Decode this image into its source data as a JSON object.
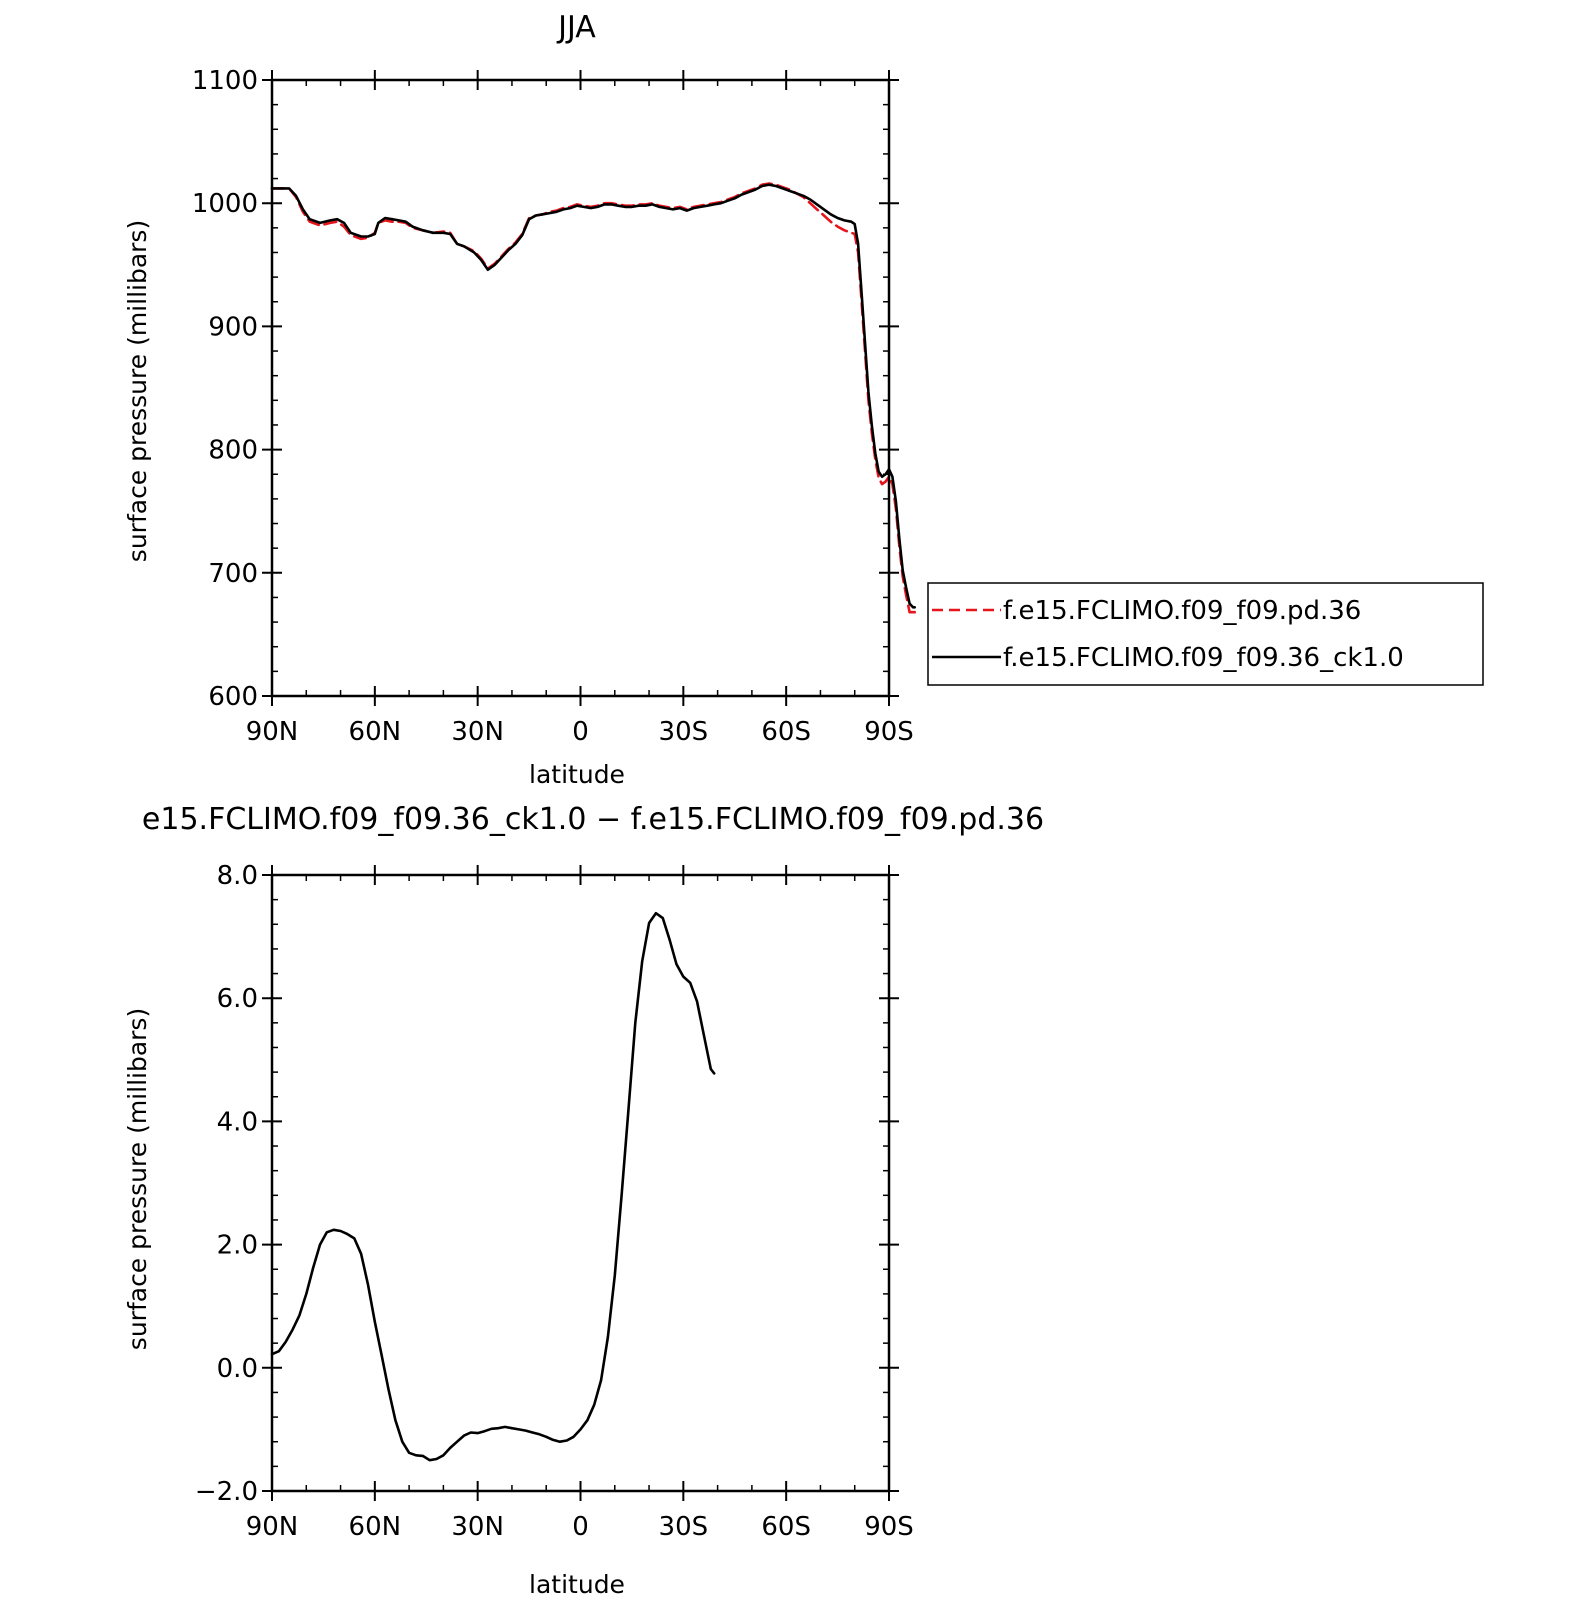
{
  "chart_data": [
    {
      "type": "line",
      "title": "JJA",
      "xlabel": "latitude",
      "ylabel": "surface pressure (millibars)",
      "xlim": [
        -90,
        90
      ],
      "ylim": [
        600,
        1100
      ],
      "x_ticks": [
        -90,
        -60,
        -30,
        0,
        30,
        60,
        90
      ],
      "x_tick_labels": [
        "90N",
        "60N",
        "30N",
        "0",
        "30S",
        "60S",
        "90S"
      ],
      "y_ticks": [
        600,
        700,
        800,
        900,
        1000,
        1100
      ],
      "y_tick_labels": [
        "600",
        "700",
        "800",
        "900",
        "1000",
        "1100"
      ],
      "grid": false,
      "legend_position": "right",
      "series": [
        {
          "name": "f.e15.FCLIMO.f09_f09.pd.36",
          "color": "#e8141c",
          "dash": "dashed",
          "points": [
            [
              -90,
              1012
            ],
            [
              -85,
              1012
            ],
            [
              -83,
              1005
            ],
            [
              -81,
              993
            ],
            [
              -79,
              985
            ],
            [
              -76,
              982
            ],
            [
              -73,
              984
            ],
            [
              -71,
              985
            ],
            [
              -69,
              981
            ],
            [
              -67,
              974
            ],
            [
              -64,
              971
            ],
            [
              -62,
              972
            ],
            [
              -60,
              976
            ],
            [
              -59,
              984
            ],
            [
              -57,
              986
            ],
            [
              -55,
              985
            ],
            [
              -53,
              985
            ],
            [
              -51,
              984
            ],
            [
              -49,
              980
            ],
            [
              -46,
              978
            ],
            [
              -43,
              976
            ],
            [
              -40,
              977
            ],
            [
              -38,
              976
            ],
            [
              -36,
              967
            ],
            [
              -34,
              965
            ],
            [
              -31,
              961
            ],
            [
              -29,
              955
            ],
            [
              -27,
              947
            ],
            [
              -25,
              951
            ],
            [
              -23,
              957
            ],
            [
              -21,
              963
            ],
            [
              -19,
              968
            ],
            [
              -17,
              975
            ],
            [
              -15,
              988
            ],
            [
              -13,
              990
            ],
            [
              -11,
              991
            ],
            [
              -9,
              993
            ],
            [
              -7,
              994
            ],
            [
              -5,
              996
            ],
            [
              -3,
              997
            ],
            [
              -1,
              999
            ],
            [
              1,
              998
            ],
            [
              3,
              997
            ],
            [
              5,
              998
            ],
            [
              7,
              1000
            ],
            [
              9,
              1000
            ],
            [
              11,
              999
            ],
            [
              13,
              998
            ],
            [
              15,
              998
            ],
            [
              17,
              999
            ],
            [
              19,
              999
            ],
            [
              21,
              1000
            ],
            [
              23,
              998
            ],
            [
              25,
              997
            ],
            [
              27,
              996
            ],
            [
              29,
              997
            ],
            [
              31,
              995
            ],
            [
              33,
              997
            ],
            [
              35,
              998
            ],
            [
              37,
              999
            ],
            [
              39,
              1000
            ],
            [
              41,
              1001
            ],
            [
              43,
              1003
            ],
            [
              45,
              1005
            ],
            [
              47,
              1008
            ],
            [
              49,
              1010
            ],
            [
              51,
              1012
            ],
            [
              53,
              1015
            ],
            [
              55,
              1016
            ],
            [
              57,
              1015
            ],
            [
              59,
              1013
            ],
            [
              61,
              1011
            ],
            [
              63,
              1008
            ],
            [
              65,
              1005
            ],
            [
              67,
              1000
            ],
            [
              69,
              995
            ],
            [
              71,
              990
            ],
            [
              73,
              985
            ],
            [
              75,
              981
            ],
            [
              77,
              978
            ],
            [
              79,
              976
            ],
            [
              80,
              975
            ],
            [
              81,
              960
            ],
            [
              82,
              920
            ],
            [
              83,
              880
            ],
            [
              84,
              840
            ],
            [
              85,
              813
            ],
            [
              86,
              792
            ],
            [
              87,
              777
            ],
            [
              88,
              772
            ],
            [
              89,
              774
            ],
            [
              90,
              778
            ],
            [
              91,
              772
            ],
            [
              92,
              752
            ],
            [
              93,
              722
            ],
            [
              94,
              697
            ],
            [
              95,
              682
            ],
            [
              96,
              668
            ],
            [
              97,
              668
            ],
            [
              97.5,
              668
            ]
          ]
        },
        {
          "name": "f.e15.FCLIMO.f09_f09.36_ck1.0",
          "color": "#000000",
          "dash": "solid",
          "points": [
            [
              -90,
              1012
            ],
            [
              -85,
              1012
            ],
            [
              -83,
              1006
            ],
            [
              -81,
              995
            ],
            [
              -79,
              987
            ],
            [
              -76,
              984
            ],
            [
              -73,
              986
            ],
            [
              -71,
              987
            ],
            [
              -69,
              984
            ],
            [
              -67,
              976
            ],
            [
              -64,
              973
            ],
            [
              -62,
              973
            ],
            [
              -60,
              975
            ],
            [
              -59,
              984
            ],
            [
              -57,
              988
            ],
            [
              -55,
              987
            ],
            [
              -53,
              986
            ],
            [
              -51,
              985
            ],
            [
              -49,
              981
            ],
            [
              -46,
              978
            ],
            [
              -43,
              976
            ],
            [
              -40,
              976
            ],
            [
              -38,
              975
            ],
            [
              -36,
              967
            ],
            [
              -34,
              965
            ],
            [
              -31,
              960
            ],
            [
              -29,
              954
            ],
            [
              -27,
              946
            ],
            [
              -25,
              950
            ],
            [
              -23,
              956
            ],
            [
              -21,
              962
            ],
            [
              -19,
              967
            ],
            [
              -17,
              974
            ],
            [
              -15,
              987
            ],
            [
              -13,
              990
            ],
            [
              -11,
              991
            ],
            [
              -9,
              992
            ],
            [
              -7,
              993
            ],
            [
              -5,
              995
            ],
            [
              -3,
              996
            ],
            [
              -1,
              998
            ],
            [
              1,
              997
            ],
            [
              3,
              996
            ],
            [
              5,
              997
            ],
            [
              7,
              999
            ],
            [
              9,
              999
            ],
            [
              11,
              998
            ],
            [
              13,
              997
            ],
            [
              15,
              997
            ],
            [
              17,
              998
            ],
            [
              19,
              998
            ],
            [
              21,
              999
            ],
            [
              23,
              997
            ],
            [
              25,
              996
            ],
            [
              27,
              995
            ],
            [
              29,
              996
            ],
            [
              31,
              994
            ],
            [
              33,
              996
            ],
            [
              35,
              997
            ],
            [
              37,
              998
            ],
            [
              39,
              999
            ],
            [
              41,
              1000
            ],
            [
              43,
              1002
            ],
            [
              45,
              1004
            ],
            [
              47,
              1007
            ],
            [
              49,
              1009
            ],
            [
              51,
              1011
            ],
            [
              53,
              1014
            ],
            [
              55,
              1015
            ],
            [
              57,
              1014
            ],
            [
              59,
              1012
            ],
            [
              61,
              1010
            ],
            [
              63,
              1008
            ],
            [
              65,
              1006
            ],
            [
              67,
              1003
            ],
            [
              69,
              999
            ],
            [
              71,
              995
            ],
            [
              73,
              991
            ],
            [
              75,
              988
            ],
            [
              77,
              986
            ],
            [
              79,
              985
            ],
            [
              80,
              983
            ],
            [
              81,
              967
            ],
            [
              82,
              927
            ],
            [
              83,
              887
            ],
            [
              84,
              847
            ],
            [
              85,
              819
            ],
            [
              86,
              797
            ],
            [
              87,
              782
            ],
            [
              88,
              778
            ],
            [
              89,
              780
            ],
            [
              90,
              784
            ],
            [
              91,
              778
            ],
            [
              92,
              758
            ],
            [
              93,
              728
            ],
            [
              94,
              702
            ],
            [
              95,
              688
            ],
            [
              96,
              675
            ],
            [
              97,
              672
            ],
            [
              97.5,
              672
            ]
          ]
        }
      ]
    },
    {
      "type": "line",
      "title": "e15.FCLIMO.f09_f09.36_ck1.0 − f.e15.FCLIMO.f09_f09.pd.36",
      "xlabel": "latitude",
      "ylabel": "surface pressure (millibars)",
      "xlim": [
        -90,
        90
      ],
      "ylim": [
        -2,
        8
      ],
      "x_ticks": [
        -90,
        -60,
        -30,
        0,
        30,
        60,
        90
      ],
      "x_tick_labels": [
        "90N",
        "60N",
        "30N",
        "0",
        "30S",
        "60S",
        "90S"
      ],
      "y_ticks": [
        -2,
        0,
        2,
        4,
        6,
        8
      ],
      "y_tick_labels": [
        "−2.0",
        "0.0",
        "2.0",
        "4.0",
        "6.0",
        "8.0"
      ],
      "grid": false,
      "series": [
        {
          "color": "#000000",
          "dash": "solid",
          "points": [
            [
              -90,
              0.22
            ],
            [
              -88,
              0.27
            ],
            [
              -86,
              0.42
            ],
            [
              -84,
              0.62
            ],
            [
              -82,
              0.85
            ],
            [
              -80,
              1.2
            ],
            [
              -78,
              1.62
            ],
            [
              -76,
              2.0
            ],
            [
              -74,
              2.2
            ],
            [
              -72,
              2.24
            ],
            [
              -70,
              2.22
            ],
            [
              -68,
              2.17
            ],
            [
              -66,
              2.1
            ],
            [
              -64,
              1.85
            ],
            [
              -62,
              1.35
            ],
            [
              -60,
              0.75
            ],
            [
              -58,
              0.2
            ],
            [
              -56,
              -0.35
            ],
            [
              -54,
              -0.85
            ],
            [
              -52,
              -1.2
            ],
            [
              -50,
              -1.38
            ],
            [
              -48,
              -1.42
            ],
            [
              -46,
              -1.43
            ],
            [
              -44,
              -1.5
            ],
            [
              -42,
              -1.48
            ],
            [
              -40,
              -1.42
            ],
            [
              -38,
              -1.3
            ],
            [
              -36,
              -1.2
            ],
            [
              -34,
              -1.1
            ],
            [
              -32,
              -1.05
            ],
            [
              -30,
              -1.06
            ],
            [
              -28,
              -1.03
            ],
            [
              -26,
              -0.99
            ],
            [
              -24,
              -0.98
            ],
            [
              -22,
              -0.96
            ],
            [
              -20,
              -0.98
            ],
            [
              -18,
              -1.0
            ],
            [
              -16,
              -1.02
            ],
            [
              -14,
              -1.05
            ],
            [
              -12,
              -1.08
            ],
            [
              -10,
              -1.12
            ],
            [
              -8,
              -1.17
            ],
            [
              -6,
              -1.2
            ],
            [
              -4,
              -1.18
            ],
            [
              -2,
              -1.12
            ],
            [
              0,
              -1.0
            ],
            [
              2,
              -0.85
            ],
            [
              4,
              -0.6
            ],
            [
              6,
              -0.2
            ],
            [
              8,
              0.5
            ],
            [
              10,
              1.5
            ],
            [
              12,
              2.8
            ],
            [
              14,
              4.2
            ],
            [
              16,
              5.6
            ],
            [
              18,
              6.6
            ],
            [
              20,
              7.22
            ],
            [
              22,
              7.38
            ],
            [
              24,
              7.3
            ],
            [
              26,
              6.95
            ],
            [
              28,
              6.55
            ],
            [
              30,
              6.35
            ],
            [
              32,
              6.25
            ],
            [
              34,
              5.95
            ],
            [
              36,
              5.4
            ],
            [
              38,
              4.85
            ],
            [
              39,
              4.78
            ]
          ]
        }
      ]
    }
  ]
}
